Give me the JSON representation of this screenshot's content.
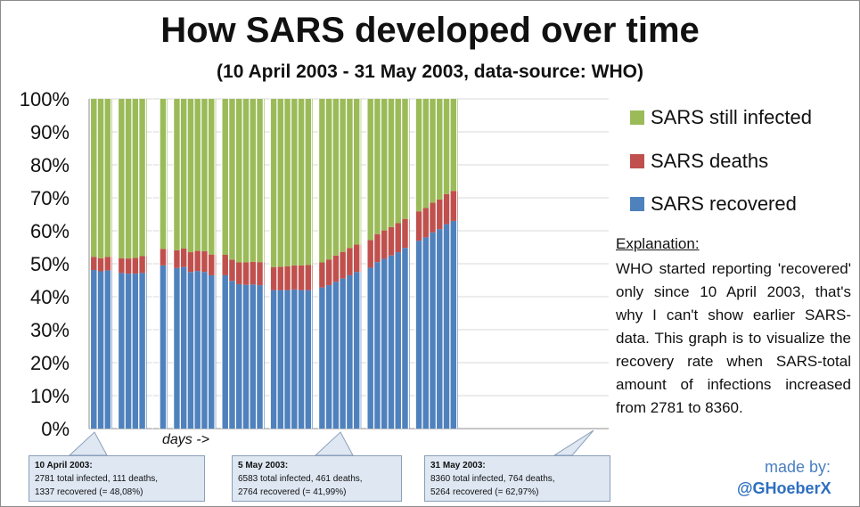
{
  "chart_data": {
    "type": "bar",
    "stacked": true,
    "title": "How SARS developed over time",
    "subtitle": "(10 April 2003 - 31 May 2003, data-source: WHO)",
    "xlabel": "days ->",
    "ylabel": "",
    "ylim": [
      0,
      100
    ],
    "yticks": [
      "0%",
      "10%",
      "20%",
      "30%",
      "40%",
      "50%",
      "60%",
      "70%",
      "80%",
      "90%",
      "100%"
    ],
    "series_colors": {
      "recovered": "#4f81bd",
      "deaths": "#c0504d",
      "infected": "#9bbb59"
    },
    "legend": [
      "SARS still infected",
      "SARS deaths",
      "SARS recovered"
    ],
    "days": [
      {
        "r": 48.1,
        "d": 4.0
      },
      {
        "r": 47.7,
        "d": 4.0
      },
      {
        "r": 48.0,
        "d": 4.1
      },
      null,
      {
        "r": 47.2,
        "d": 4.5
      },
      {
        "r": 47.0,
        "d": 4.6
      },
      {
        "r": 47.0,
        "d": 4.8
      },
      {
        "r": 47.2,
        "d": 5.1
      },
      null,
      null,
      {
        "r": 49.5,
        "d": 5.0
      },
      null,
      {
        "r": 48.7,
        "d": 5.4
      },
      {
        "r": 49.0,
        "d": 5.6
      },
      {
        "r": 47.5,
        "d": 6.0
      },
      {
        "r": 47.8,
        "d": 6.1
      },
      {
        "r": 47.5,
        "d": 6.3
      },
      {
        "r": 46.5,
        "d": 6.3
      },
      null,
      {
        "r": 46.5,
        "d": 6.2
      },
      {
        "r": 44.8,
        "d": 6.4
      },
      {
        "r": 43.8,
        "d": 6.6
      },
      {
        "r": 43.6,
        "d": 6.8
      },
      {
        "r": 43.7,
        "d": 6.9
      },
      {
        "r": 43.5,
        "d": 7.0
      },
      null,
      {
        "r": 42.0,
        "d": 7.0
      },
      {
        "r": 42.0,
        "d": 7.1
      },
      {
        "r": 42.0,
        "d": 7.2
      },
      {
        "r": 42.2,
        "d": 7.3
      },
      {
        "r": 42.0,
        "d": 7.5
      },
      {
        "r": 42.0,
        "d": 7.6
      },
      null,
      {
        "r": 42.8,
        "d": 7.6
      },
      {
        "r": 43.5,
        "d": 7.8
      },
      {
        "r": 44.5,
        "d": 8.0
      },
      {
        "r": 45.5,
        "d": 8.1
      },
      {
        "r": 46.5,
        "d": 8.3
      },
      {
        "r": 47.5,
        "d": 8.3
      },
      null,
      {
        "r": 48.8,
        "d": 8.4
      },
      {
        "r": 50.5,
        "d": 8.5
      },
      {
        "r": 51.5,
        "d": 8.6
      },
      {
        "r": 52.5,
        "d": 8.6
      },
      {
        "r": 53.5,
        "d": 8.8
      },
      {
        "r": 54.8,
        "d": 8.8
      },
      null,
      {
        "r": 57.0,
        "d": 8.9
      },
      {
        "r": 58.0,
        "d": 8.9
      },
      {
        "r": 59.5,
        "d": 9.0
      },
      {
        "r": 60.5,
        "d": 9.0
      },
      {
        "r": 62.0,
        "d": 9.1
      },
      {
        "r": 63.0,
        "d": 9.1
      }
    ]
  },
  "explanation": {
    "heading": "Explanation:",
    "text": "WHO started reporting 'recovered' only since 10 April 2003, that's why I can't show earlier SARS-data. This graph is to visualize the recovery rate when SARS-total amount of infections increased from 2781 to 8360."
  },
  "callouts": [
    {
      "heading": "10 April 2003:",
      "line1": "2781 total infected, 111 deaths,",
      "line2": "1337 recovered (= 48,08%)"
    },
    {
      "heading": "5 May 2003:",
      "line1": "6583 total infected, 461 deaths,",
      "line2": "2764 recovered (= 41,99%)"
    },
    {
      "heading": "31 May 2003:",
      "line1": "8360 total infected, 764 deaths,",
      "line2": "5264 recovered (= 62,97%)"
    }
  ],
  "credit": {
    "line1": "made by:",
    "line2": "@GHoeberX"
  }
}
